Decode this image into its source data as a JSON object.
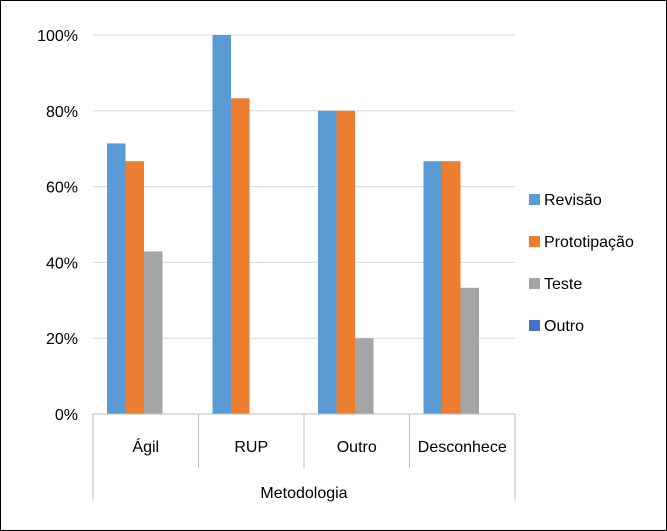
{
  "chart_data": {
    "type": "bar",
    "title": "",
    "xlabel": "Metodologia",
    "ylabel": "",
    "categories": [
      "Ágil",
      "RUP",
      "Outro",
      "Desconhece"
    ],
    "series": [
      {
        "name": "Revisão",
        "color": "#5b9bd5",
        "values": [
          71.4,
          100,
          80,
          66.7
        ]
      },
      {
        "name": "Prototipação",
        "color": "#ed7d31",
        "values": [
          66.7,
          83.3,
          80,
          66.7
        ]
      },
      {
        "name": "Teste",
        "color": "#a5a5a5",
        "values": [
          42.9,
          0,
          20,
          33.3
        ]
      },
      {
        "name": "Outro",
        "color": "#4472c4",
        "values": [
          0,
          0,
          0,
          0
        ]
      }
    ],
    "ylim": [
      0,
      100
    ],
    "yticks": [
      0,
      20,
      40,
      60,
      80,
      100
    ],
    "ytick_labels": [
      "0%",
      "20%",
      "40%",
      "60%",
      "80%",
      "100%"
    ],
    "grid": true,
    "legend_position": "right"
  }
}
